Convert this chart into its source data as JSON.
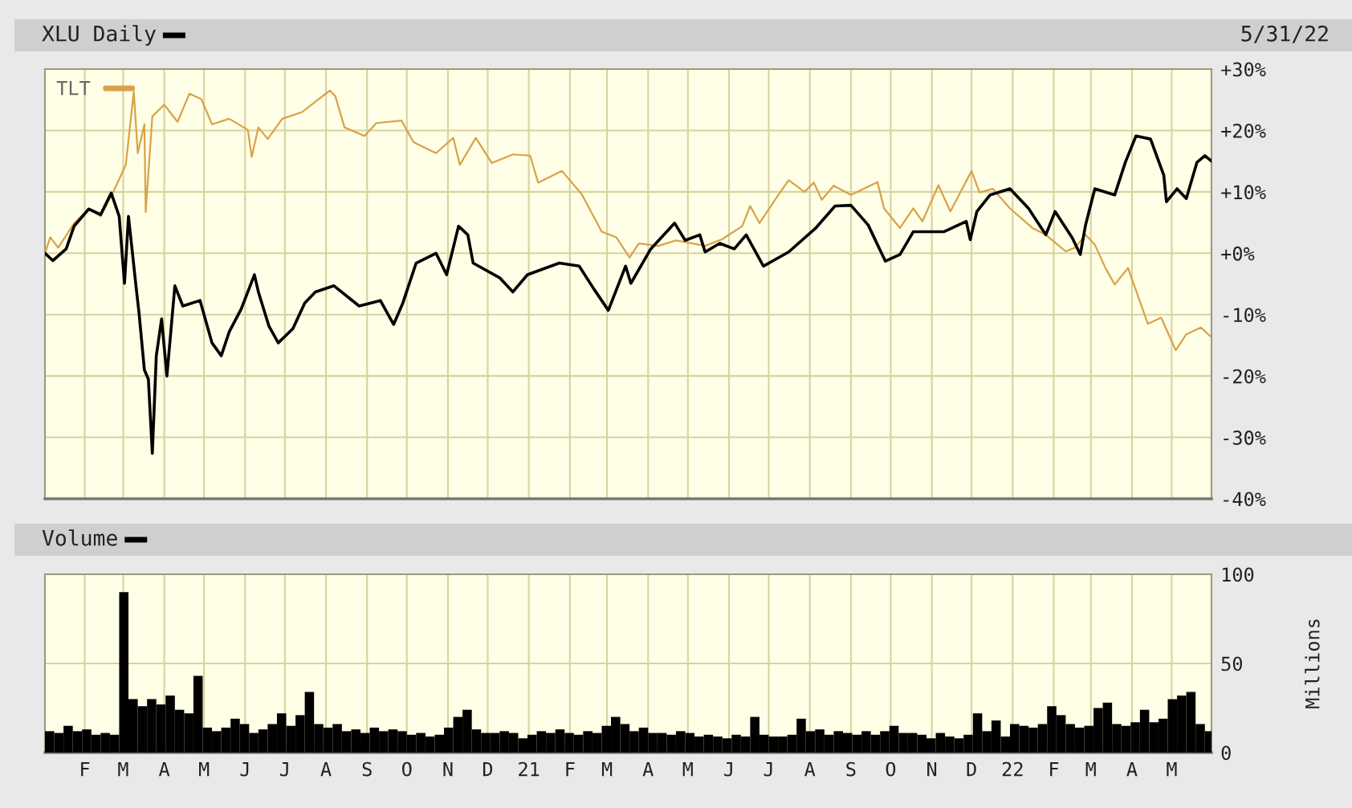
{
  "chart_data": [
    {
      "type": "line",
      "title": "XLU Daily",
      "annotations": [
        "5/31/22"
      ],
      "xlim": [
        "2020-01-02",
        "2022-05-31"
      ],
      "xticks": [
        {
          "value": "2020-02-01",
          "label": null
        },
        {
          "value": "2020-03-01",
          "label": null
        },
        {
          "value": "2020-04-01",
          "label": null
        },
        {
          "value": "2020-05-01",
          "label": null
        },
        {
          "value": "2020-06-01",
          "label": null
        },
        {
          "value": "2020-07-01",
          "label": null
        },
        {
          "value": "2020-08-01",
          "label": null
        },
        {
          "value": "2020-09-01",
          "label": null
        },
        {
          "value": "2020-10-01",
          "label": null
        },
        {
          "value": "2020-11-01",
          "label": null
        },
        {
          "value": "2020-12-01",
          "label": null
        },
        {
          "value": "2021-01-01",
          "label": null
        },
        {
          "value": "2021-02-01",
          "label": null
        },
        {
          "value": "2021-03-01",
          "label": null
        },
        {
          "value": "2021-04-01",
          "label": null
        },
        {
          "value": "2021-05-01",
          "label": null
        },
        {
          "value": "2021-06-01",
          "label": null
        },
        {
          "value": "2021-07-01",
          "label": null
        },
        {
          "value": "2021-08-01",
          "label": null
        },
        {
          "value": "2021-09-01",
          "label": null
        },
        {
          "value": "2021-10-01",
          "label": null
        },
        {
          "value": "2021-11-01",
          "label": null
        },
        {
          "value": "2021-12-01",
          "label": null
        },
        {
          "value": "2022-01-01",
          "label": null
        },
        {
          "value": "2022-02-01",
          "label": null
        },
        {
          "value": "2022-03-01",
          "label": null
        },
        {
          "value": "2022-04-01",
          "label": null
        },
        {
          "value": "2022-05-01",
          "label": null
        }
      ],
      "ylim": [
        -40,
        30
      ],
      "yticks": [
        {
          "value": -40,
          "label": "-40%"
        },
        {
          "value": -30,
          "label": "-30%"
        },
        {
          "value": -20,
          "label": "-20%"
        },
        {
          "value": -10,
          "label": "-10%"
        },
        {
          "value": 0,
          "label": "+0%"
        },
        {
          "value": 10,
          "label": "+10%"
        },
        {
          "value": 20,
          "label": "+20%"
        },
        {
          "value": 30,
          "label": "+30%"
        }
      ],
      "tick_labels": "y",
      "grid": true,
      "legend": "top left",
      "series": [
        {
          "color": "#000000",
          "x": [
            "2020-01-02",
            "2020-01-08",
            "2020-01-18",
            "2020-01-24",
            "2020-02-04",
            "2020-02-13",
            "2020-02-21",
            "2020-02-27",
            "2020-03-02",
            "2020-03-05",
            "2020-03-11",
            "2020-03-13",
            "2020-03-17",
            "2020-03-20",
            "2020-03-23",
            "2020-03-26",
            "2020-03-30",
            "2020-04-03",
            "2020-04-09",
            "2020-04-15",
            "2020-04-28",
            "2020-05-07",
            "2020-05-14",
            "2020-05-20",
            "2020-05-29",
            "2020-06-08",
            "2020-06-11",
            "2020-06-19",
            "2020-06-26",
            "2020-07-07",
            "2020-07-16",
            "2020-07-24",
            "2020-08-07",
            "2020-08-26",
            "2020-09-11",
            "2020-09-21",
            "2020-09-28",
            "2020-10-08",
            "2020-10-23",
            "2020-10-31",
            "2020-11-09",
            "2020-11-16",
            "2020-11-20",
            "2020-12-10",
            "2020-12-20",
            "2020-12-31",
            "2021-01-24",
            "2021-02-08",
            "2021-02-19",
            "2021-03-02",
            "2021-03-15",
            "2021-03-19",
            "2021-04-03",
            "2021-04-21",
            "2021-04-29",
            "2021-05-10",
            "2021-05-14",
            "2021-05-25",
            "2021-06-05",
            "2021-06-14",
            "2021-06-27",
            "2021-07-16",
            "2021-08-05",
            "2021-08-20",
            "2021-09-01",
            "2021-09-14",
            "2021-09-27",
            "2021-10-08",
            "2021-10-18",
            "2021-11-10",
            "2021-11-27",
            "2021-11-30",
            "2021-12-05",
            "2021-12-15",
            "2021-12-30",
            "2022-01-13",
            "2022-01-26",
            "2022-02-02",
            "2022-02-15",
            "2022-02-21",
            "2022-02-25",
            "2022-03-04",
            "2022-03-19",
            "2022-03-27",
            "2022-04-04",
            "2022-04-15",
            "2022-04-25",
            "2022-04-27",
            "2022-05-05",
            "2022-05-12",
            "2022-05-20",
            "2022-05-26",
            "2022-05-31"
          ],
          "values": [
            0,
            -1.2,
            0.7,
            4.4,
            7.2,
            6.3,
            9.8,
            6,
            -4.9,
            6,
            -6,
            -9.8,
            -19,
            -20.5,
            -32.6,
            -16.7,
            -10.7,
            -20,
            -5.3,
            -8.6,
            -7.7,
            -14.6,
            -16.7,
            -12.8,
            -9.1,
            -3.5,
            -6.3,
            -11.9,
            -14.6,
            -12.3,
            -8.1,
            -6.3,
            -5.3,
            -8.6,
            -7.7,
            -11.6,
            -8.1,
            -1.6,
            0,
            -3.5,
            4.4,
            3,
            -1.6,
            -4,
            -6.3,
            -3.5,
            -1.6,
            -2.1,
            -5.8,
            -9.3,
            -2.1,
            -4.9,
            0.7,
            4.9,
            2.1,
            3,
            0.2,
            1.6,
            0.7,
            3,
            -2.1,
            0.2,
            4,
            7.7,
            7.8,
            4.6,
            -1.3,
            -0.2,
            3.5,
            3.5,
            5.2,
            2.2,
            6.8,
            9.5,
            10.5,
            7.3,
            3,
            6.8,
            2.5,
            -0.2,
            4.6,
            10.5,
            9.5,
            14.8,
            19.1,
            18.6,
            12.7,
            8.4,
            10.5,
            8.9,
            14.8,
            15.9,
            15
          ]
        },
        {
          "name": "TLT",
          "color": "#d9a24a",
          "x": [
            "2020-01-02",
            "2020-01-06",
            "2020-01-12",
            "2020-01-24",
            "2020-02-04",
            "2020-02-13",
            "2020-02-23",
            "2020-03-03",
            "2020-03-09",
            "2020-03-12",
            "2020-03-17",
            "2020-03-18",
            "2020-03-23",
            "2020-04-01",
            "2020-04-11",
            "2020-04-20",
            "2020-04-29",
            "2020-05-07",
            "2020-05-20",
            "2020-06-03",
            "2020-06-06",
            "2020-06-11",
            "2020-06-18",
            "2020-06-29",
            "2020-07-14",
            "2020-07-24",
            "2020-08-04",
            "2020-08-08",
            "2020-08-15",
            "2020-08-30",
            "2020-09-08",
            "2020-09-27",
            "2020-10-06",
            "2020-10-23",
            "2020-11-05",
            "2020-11-10",
            "2020-11-22",
            "2020-12-04",
            "2020-12-20",
            "2021-01-02",
            "2021-01-08",
            "2021-01-26",
            "2021-02-10",
            "2021-02-25",
            "2021-03-08",
            "2021-03-18",
            "2021-03-25",
            "2021-04-09",
            "2021-04-22",
            "2021-05-14",
            "2021-05-27",
            "2021-06-11",
            "2021-06-17",
            "2021-06-24",
            "2021-07-07",
            "2021-07-16",
            "2021-07-28",
            "2021-08-04",
            "2021-08-10",
            "2021-08-19",
            "2021-09-01",
            "2021-09-21",
            "2021-09-26",
            "2021-10-08",
            "2021-10-18",
            "2021-10-25",
            "2021-11-06",
            "2021-11-15",
            "2021-12-01",
            "2021-12-07",
            "2021-12-17",
            "2021-12-30",
            "2022-01-16",
            "2022-01-26",
            "2022-02-10",
            "2022-02-17",
            "2022-02-25",
            "2022-03-04",
            "2022-03-12",
            "2022-03-19",
            "2022-03-29",
            "2022-04-13",
            "2022-04-23",
            "2022-05-04",
            "2022-05-12",
            "2022-05-23",
            "2022-05-31"
          ],
          "values": [
            0,
            2.6,
            0.9,
            4.9,
            7.2,
            6,
            10.2,
            14.4,
            26.3,
            16.3,
            21,
            6.7,
            22.3,
            24.2,
            21.4,
            26,
            25.1,
            21,
            21.9,
            20.1,
            15.7,
            20.5,
            18.6,
            21.9,
            23,
            24.7,
            26.5,
            25.6,
            20.5,
            19.1,
            21.2,
            21.6,
            18.1,
            16.3,
            18.8,
            14.4,
            18.8,
            14.7,
            16.1,
            15.9,
            11.5,
            13.4,
            9.6,
            3.5,
            2.6,
            -0.7,
            1.6,
            1.2,
            2.1,
            1.2,
            2.3,
            4.4,
            7.7,
            4.9,
            9.1,
            11.9,
            10,
            11.5,
            8.7,
            11,
            9.5,
            11.6,
            7.3,
            4.1,
            7.3,
            5.2,
            11.1,
            6.8,
            13.4,
            9.9,
            10.5,
            7.3,
            4.1,
            3,
            0.3,
            0.9,
            3,
            1.4,
            -2.4,
            -5.1,
            -2.4,
            -11.5,
            -10.5,
            -15.8,
            -13.2,
            -12.1,
            -13.7
          ]
        }
      ]
    },
    {
      "type": "bar",
      "title": "Volume",
      "ylabel": "Millions",
      "xlim": [
        "2020-01-02",
        "2022-05-31"
      ],
      "xticks": [
        {
          "value": "2020-02-01",
          "label": "F"
        },
        {
          "value": "2020-03-01",
          "label": "M"
        },
        {
          "value": "2020-04-01",
          "label": "A"
        },
        {
          "value": "2020-05-01",
          "label": "M"
        },
        {
          "value": "2020-06-01",
          "label": "J"
        },
        {
          "value": "2020-07-01",
          "label": "J"
        },
        {
          "value": "2020-08-01",
          "label": "A"
        },
        {
          "value": "2020-09-01",
          "label": "S"
        },
        {
          "value": "2020-10-01",
          "label": "O"
        },
        {
          "value": "2020-11-01",
          "label": "N"
        },
        {
          "value": "2020-12-01",
          "label": "D"
        },
        {
          "value": "2021-01-01",
          "label": "21"
        },
        {
          "value": "2021-02-01",
          "label": "F"
        },
        {
          "value": "2021-03-01",
          "label": "M"
        },
        {
          "value": "2021-04-01",
          "label": "A"
        },
        {
          "value": "2021-05-01",
          "label": "M"
        },
        {
          "value": "2021-06-01",
          "label": "J"
        },
        {
          "value": "2021-07-01",
          "label": "J"
        },
        {
          "value": "2021-08-01",
          "label": "A"
        },
        {
          "value": "2021-09-01",
          "label": "S"
        },
        {
          "value": "2021-10-01",
          "label": "O"
        },
        {
          "value": "2021-11-01",
          "label": "N"
        },
        {
          "value": "2021-12-01",
          "label": "D"
        },
        {
          "value": "2022-01-01",
          "label": "22"
        },
        {
          "value": "2022-02-01",
          "label": "F"
        },
        {
          "value": "2022-03-01",
          "label": "M"
        },
        {
          "value": "2022-04-01",
          "label": "A"
        },
        {
          "value": "2022-05-01",
          "label": "M"
        }
      ],
      "ylim": [
        0,
        100
      ],
      "yticks": [
        0,
        50,
        100
      ],
      "grid": true,
      "x": [
        "2020-01-02",
        "2020-01-09",
        "2020-01-16",
        "2020-01-23",
        "2020-01-30",
        "2020-02-06",
        "2020-02-13",
        "2020-02-20",
        "2020-02-27",
        "2020-03-05",
        "2020-03-12",
        "2020-03-19",
        "2020-03-26",
        "2020-04-02",
        "2020-04-09",
        "2020-04-16",
        "2020-04-23",
        "2020-04-30",
        "2020-05-07",
        "2020-05-14",
        "2020-05-21",
        "2020-05-28",
        "2020-06-04",
        "2020-06-11",
        "2020-06-18",
        "2020-06-25",
        "2020-07-02",
        "2020-07-09",
        "2020-07-16",
        "2020-07-23",
        "2020-07-30",
        "2020-08-06",
        "2020-08-13",
        "2020-08-20",
        "2020-08-27",
        "2020-09-03",
        "2020-09-10",
        "2020-09-17",
        "2020-09-24",
        "2020-10-01",
        "2020-10-08",
        "2020-10-15",
        "2020-10-22",
        "2020-10-29",
        "2020-11-05",
        "2020-11-12",
        "2020-11-19",
        "2020-11-26",
        "2020-12-03",
        "2020-12-10",
        "2020-12-17",
        "2020-12-24",
        "2020-12-31",
        "2021-01-07",
        "2021-01-14",
        "2021-01-21",
        "2021-01-28",
        "2021-02-04",
        "2021-02-11",
        "2021-02-18",
        "2021-02-25",
        "2021-03-04",
        "2021-03-11",
        "2021-03-18",
        "2021-03-25",
        "2021-04-01",
        "2021-04-08",
        "2021-04-15",
        "2021-04-22",
        "2021-04-29",
        "2021-05-06",
        "2021-05-13",
        "2021-05-20",
        "2021-05-27",
        "2021-06-03",
        "2021-06-10",
        "2021-06-17",
        "2021-06-24",
        "2021-07-01",
        "2021-07-08",
        "2021-07-15",
        "2021-07-22",
        "2021-07-29",
        "2021-08-05",
        "2021-08-12",
        "2021-08-19",
        "2021-08-26",
        "2021-09-02",
        "2021-09-09",
        "2021-09-16",
        "2021-09-23",
        "2021-09-30",
        "2021-10-07",
        "2021-10-14",
        "2021-10-21",
        "2021-10-28",
        "2021-11-04",
        "2021-11-11",
        "2021-11-18",
        "2021-11-25",
        "2021-12-02",
        "2021-12-09",
        "2021-12-16",
        "2021-12-23",
        "2021-12-30",
        "2022-01-06",
        "2022-01-13",
        "2022-01-20",
        "2022-01-27",
        "2022-02-03",
        "2022-02-10",
        "2022-02-17",
        "2022-02-24",
        "2022-03-03",
        "2022-03-10",
        "2022-03-17",
        "2022-03-24",
        "2022-03-31",
        "2022-04-07",
        "2022-04-14",
        "2022-04-21",
        "2022-04-28",
        "2022-05-05",
        "2022-05-12",
        "2022-05-19",
        "2022-05-26"
      ],
      "series": [
        {
          "color": "#000000",
          "values": [
            12,
            11,
            15,
            12,
            13,
            10,
            11,
            10,
            90,
            30,
            26,
            30,
            27,
            32,
            24,
            22,
            43,
            14,
            12,
            14,
            19,
            16,
            11,
            13,
            16,
            22,
            15,
            21,
            34,
            16,
            14,
            16,
            12,
            13,
            11,
            14,
            12,
            13,
            12,
            10,
            11,
            9,
            10,
            14,
            20,
            24,
            13,
            11,
            11,
            12,
            11,
            8,
            10,
            12,
            11,
            13,
            11,
            10,
            12,
            11,
            15,
            20,
            16,
            12,
            14,
            11,
            11,
            10,
            12,
            11,
            9,
            10,
            9,
            8,
            10,
            9,
            20,
            10,
            9,
            9,
            10,
            19,
            12,
            13,
            10,
            12,
            11,
            10,
            12,
            10,
            12,
            15,
            11,
            11,
            10,
            8,
            11,
            9,
            8,
            10,
            22,
            12,
            18,
            9,
            16,
            15,
            14,
            16,
            26,
            21,
            16,
            14,
            15,
            25,
            28,
            16,
            15,
            17,
            24,
            17,
            19,
            30,
            32,
            34,
            16,
            12
          ]
        }
      ]
    }
  ]
}
